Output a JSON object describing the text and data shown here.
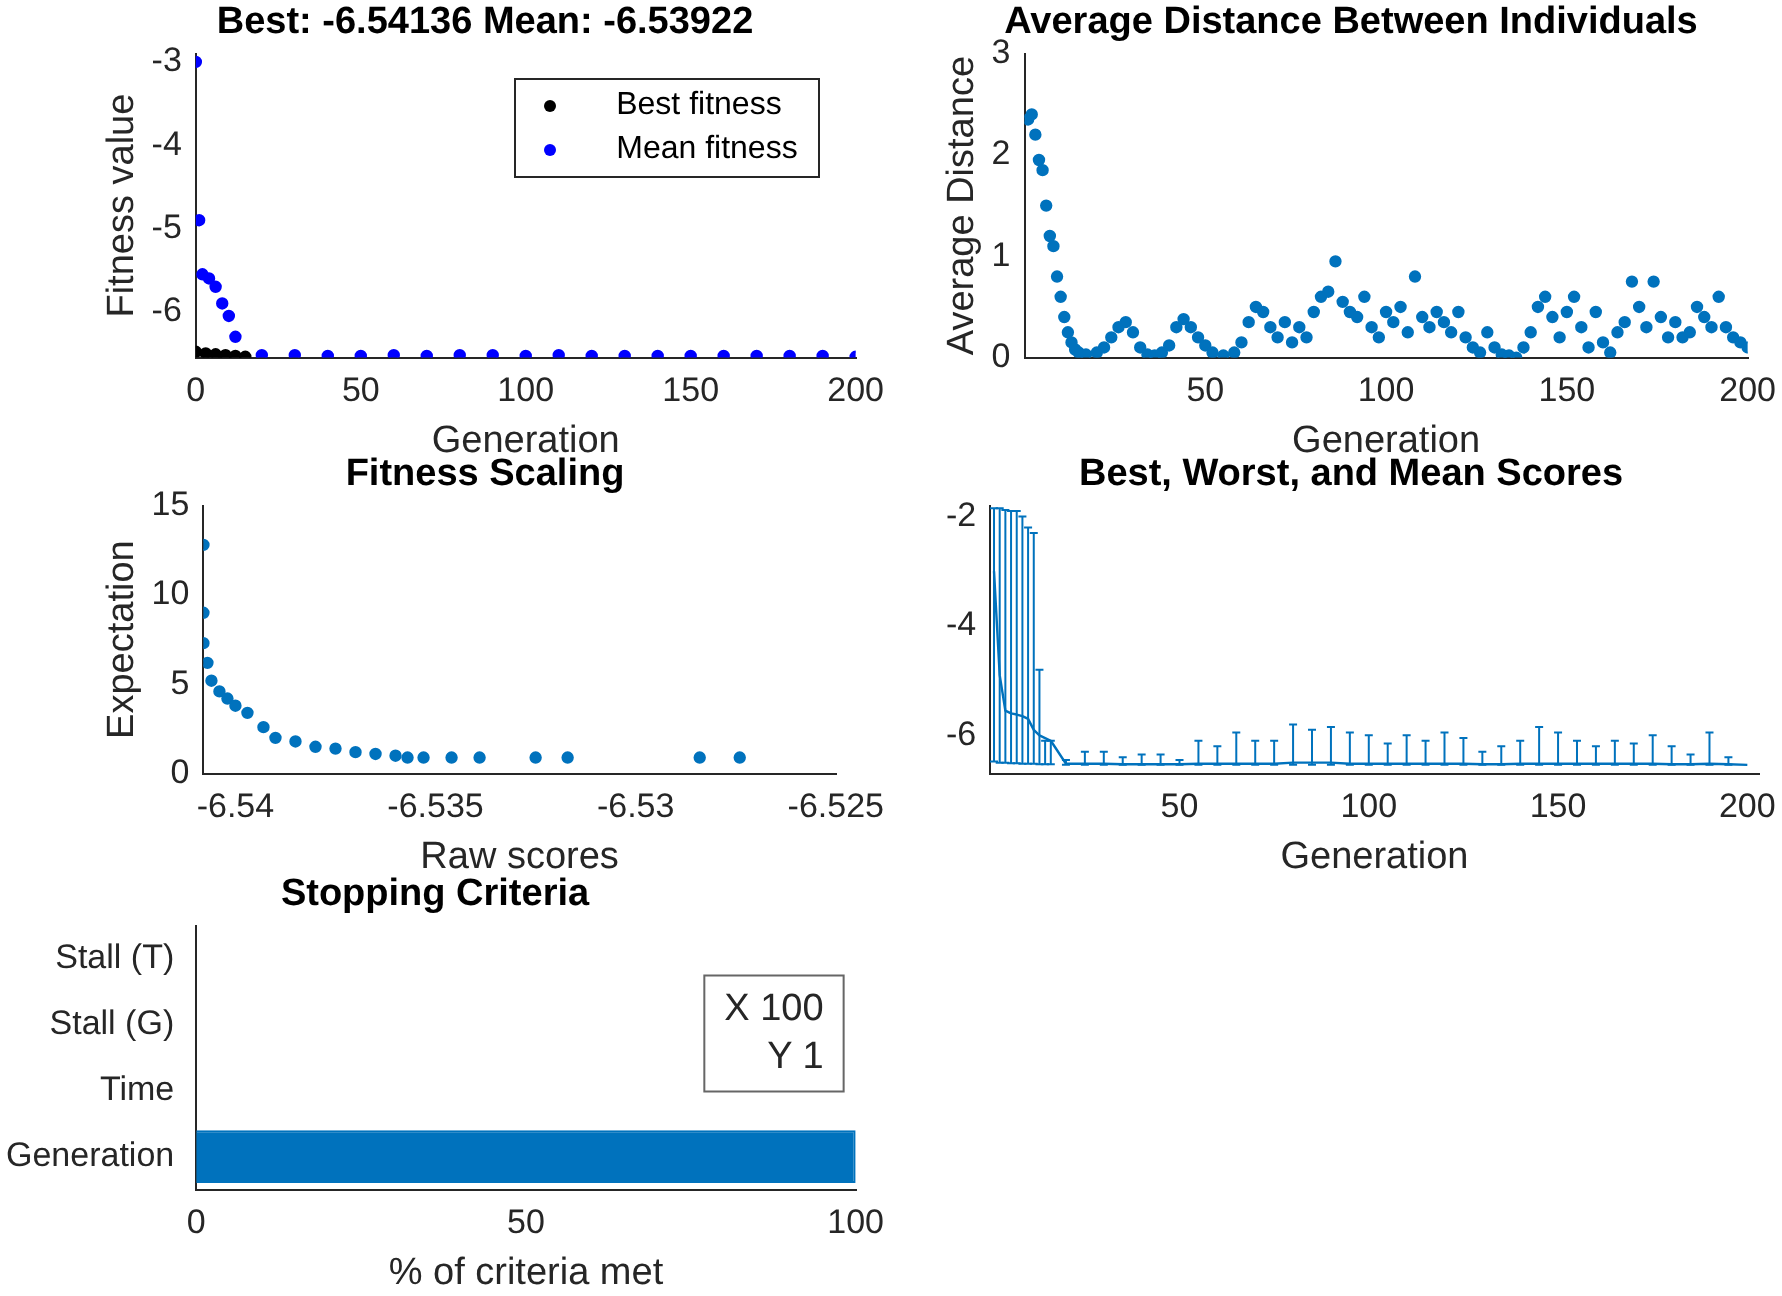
{
  "chart_data": [
    {
      "type": "scatter",
      "title": "Best: -6.54136 Mean: -6.53922",
      "xlabel": "Generation",
      "ylabel": "Fitness value",
      "xlim": [
        0,
        200
      ],
      "xticks": [
        0,
        50,
        100,
        150,
        200
      ],
      "ylim": [
        -6.55,
        -2.9
      ],
      "yticks": [
        -6,
        -5,
        -4,
        -3
      ],
      "legend": "top right",
      "marker": "circle",
      "series": [
        {
          "name": "Best fitness",
          "color": "#000000",
          "x": [
            0,
            3,
            6,
            9,
            12,
            15
          ],
          "values": [
            -6.48,
            -6.5,
            -6.51,
            -6.52,
            -6.53,
            -6.54
          ]
        },
        {
          "name": "Mean fitness",
          "color": "#0000ff",
          "x": [
            0,
            1,
            2,
            4,
            6,
            8,
            10,
            12,
            20,
            30,
            40,
            50,
            60,
            70,
            80,
            90,
            100,
            110,
            120,
            130,
            140,
            150,
            160,
            170,
            180,
            190,
            200
          ],
          "values": [
            -3.0,
            -4.9,
            -5.55,
            -5.6,
            -5.7,
            -5.9,
            -6.05,
            -6.3,
            -6.52,
            -6.52,
            -6.53,
            -6.53,
            -6.52,
            -6.53,
            -6.52,
            -6.52,
            -6.53,
            -6.52,
            -6.53,
            -6.53,
            -6.53,
            -6.53,
            -6.53,
            -6.53,
            -6.53,
            -6.53,
            -6.54
          ]
        }
      ]
    },
    {
      "type": "scatter",
      "title": "Average Distance Between Individuals",
      "xlabel": "Generation",
      "ylabel": "Average Distance",
      "xlim": [
        0,
        200
      ],
      "xticks": [
        50,
        100,
        150,
        200
      ],
      "ylim": [
        0,
        3
      ],
      "yticks": [
        0,
        1,
        2,
        3
      ],
      "marker": "circle",
      "series": [
        {
          "color": "#0072bd",
          "x": [
            1,
            2,
            3,
            4,
            5,
            6,
            7,
            8,
            9,
            10,
            11,
            12,
            13,
            14,
            15,
            17,
            20,
            22,
            24,
            26,
            28,
            30,
            32,
            34,
            36,
            38,
            40,
            42,
            44,
            46,
            48,
            50,
            52,
            55,
            58,
            60,
            62,
            64,
            66,
            68,
            70,
            72,
            74,
            76,
            78,
            80,
            82,
            84,
            86,
            88,
            90,
            92,
            94,
            96,
            98,
            100,
            102,
            104,
            106,
            108,
            110,
            112,
            114,
            116,
            118,
            120,
            122,
            124,
            126,
            128,
            130,
            132,
            134,
            136,
            138,
            140,
            142,
            144,
            146,
            148,
            150,
            152,
            154,
            156,
            158,
            160,
            162,
            164,
            166,
            168,
            170,
            172,
            174,
            176,
            178,
            180,
            182,
            184,
            186,
            188,
            190,
            192,
            194,
            196,
            198,
            200
          ],
          "values": [
            2.35,
            2.4,
            2.2,
            1.95,
            1.85,
            1.5,
            1.2,
            1.1,
            0.8,
            0.6,
            0.4,
            0.25,
            0.15,
            0.08,
            0.05,
            0.03,
            0.05,
            0.1,
            0.2,
            0.3,
            0.35,
            0.25,
            0.1,
            0.03,
            0.02,
            0.05,
            0.12,
            0.3,
            0.38,
            0.3,
            0.2,
            0.12,
            0.05,
            0.02,
            0.05,
            0.15,
            0.35,
            0.5,
            0.45,
            0.3,
            0.2,
            0.35,
            0.15,
            0.3,
            0.2,
            0.45,
            0.6,
            0.65,
            0.95,
            0.55,
            0.45,
            0.4,
            0.6,
            0.3,
            0.2,
            0.45,
            0.35,
            0.5,
            0.25,
            0.8,
            0.4,
            0.3,
            0.45,
            0.35,
            0.25,
            0.45,
            0.2,
            0.1,
            0.05,
            0.25,
            0.1,
            0.03,
            0.02,
            0.0,
            0.1,
            0.25,
            0.5,
            0.6,
            0.4,
            0.2,
            0.45,
            0.6,
            0.3,
            0.1,
            0.45,
            0.15,
            0.05,
            0.25,
            0.35,
            0.75,
            0.5,
            0.3,
            0.75,
            0.4,
            0.2,
            0.35,
            0.2,
            0.25,
            0.5,
            0.4,
            0.3,
            0.6,
            0.3,
            0.2,
            0.15,
            0.1
          ]
        }
      ]
    },
    {
      "type": "scatter",
      "title": "Fitness Scaling",
      "xlabel": "Raw scores",
      "ylabel": "Expectation",
      "xlim": [
        -6.5408,
        -6.525
      ],
      "xticks": [
        -6.54,
        -6.535,
        -6.53,
        -6.525
      ],
      "ylim": [
        0,
        15
      ],
      "yticks": [
        0,
        5,
        10,
        15
      ],
      "marker": "circle",
      "series": [
        {
          "color": "#0072bd",
          "x": [
            -6.5408,
            -6.5408,
            -6.5408,
            -6.5407,
            -6.5406,
            -6.5404,
            -6.5402,
            -6.54,
            -6.5397,
            -6.5393,
            -6.539,
            -6.5385,
            -6.538,
            -6.5375,
            -6.537,
            -6.5365,
            -6.536,
            -6.5357,
            -6.5353,
            -6.5346,
            -6.5339,
            -6.5325,
            -6.5317,
            -6.5284,
            -6.5274
          ],
          "values": [
            12.8,
            9.0,
            7.3,
            6.2,
            5.2,
            4.6,
            4.2,
            3.8,
            3.4,
            2.6,
            2.0,
            1.8,
            1.5,
            1.4,
            1.2,
            1.1,
            1.0,
            0.9,
            0.9,
            0.9,
            0.9,
            0.9,
            0.9,
            0.9,
            0.9
          ]
        }
      ]
    },
    {
      "type": "line",
      "title": "Best, Worst, and Mean Scores",
      "xlabel": "Generation",
      "xlim": [
        0,
        203
      ],
      "xticks": [
        50,
        100,
        150,
        200
      ],
      "ylim": [
        -6.7,
        -1.8
      ],
      "yticks": [
        -6,
        -4,
        -2
      ],
      "marker": "none",
      "series": [
        {
          "color": "#0072bd",
          "x": [
            1,
            2.5,
            4,
            5.5,
            7,
            8.5,
            10,
            11.5,
            13,
            14.5,
            16,
            20,
            25,
            30,
            35,
            40,
            45,
            50,
            55,
            60,
            65,
            70,
            75,
            80,
            85,
            90,
            95,
            100,
            105,
            110,
            115,
            120,
            125,
            130,
            135,
            140,
            145,
            150,
            155,
            160,
            165,
            170,
            175,
            180,
            185,
            190,
            195,
            200
          ],
          "values": [
            -3.0,
            -4.9,
            -5.55,
            -5.6,
            -5.62,
            -5.65,
            -5.7,
            -5.9,
            -6.0,
            -6.05,
            -6.1,
            -6.52,
            -6.52,
            -6.52,
            -6.53,
            -6.53,
            -6.53,
            -6.53,
            -6.52,
            -6.52,
            -6.52,
            -6.52,
            -6.52,
            -6.5,
            -6.5,
            -6.5,
            -6.52,
            -6.52,
            -6.52,
            -6.52,
            -6.52,
            -6.52,
            -6.52,
            -6.53,
            -6.53,
            -6.52,
            -6.52,
            -6.52,
            -6.52,
            -6.52,
            -6.52,
            -6.52,
            -6.52,
            -6.53,
            -6.53,
            -6.52,
            -6.53,
            -6.54
          ],
          "errors": [
            [
              -6.48,
              -1.85
            ],
            [
              -6.5,
              -1.85
            ],
            [
              -6.5,
              -1.88
            ],
            [
              -6.51,
              -1.9
            ],
            [
              -6.51,
              -1.9
            ],
            [
              -6.52,
              -2.0
            ],
            [
              -6.52,
              -2.2
            ],
            [
              -6.52,
              -2.3
            ],
            [
              -6.53,
              -4.8
            ],
            [
              -6.53,
              -6.1
            ],
            [
              -6.53,
              -6.1
            ],
            [
              -6.54,
              -6.45
            ],
            [
              -6.54,
              -6.3
            ],
            [
              -6.54,
              -6.3
            ],
            [
              -6.54,
              -6.4
            ],
            [
              -6.54,
              -6.35
            ],
            [
              -6.54,
              -6.35
            ],
            [
              -6.54,
              -6.45
            ],
            [
              -6.54,
              -6.1
            ],
            [
              -6.54,
              -6.2
            ],
            [
              -6.54,
              -5.95
            ],
            [
              -6.54,
              -6.1
            ],
            [
              -6.54,
              -6.1
            ],
            [
              -6.54,
              -5.8
            ],
            [
              -6.54,
              -5.9
            ],
            [
              -6.54,
              -5.85
            ],
            [
              -6.54,
              -5.95
            ],
            [
              -6.54,
              -6.0
            ],
            [
              -6.54,
              -6.15
            ],
            [
              -6.54,
              -6.0
            ],
            [
              -6.54,
              -6.1
            ],
            [
              -6.54,
              -5.95
            ],
            [
              -6.54,
              -6.05
            ],
            [
              -6.54,
              -6.3
            ],
            [
              -6.54,
              -6.2
            ],
            [
              -6.54,
              -6.1
            ],
            [
              -6.54,
              -5.85
            ],
            [
              -6.54,
              -5.95
            ],
            [
              -6.54,
              -6.1
            ],
            [
              -6.54,
              -6.2
            ],
            [
              -6.54,
              -6.1
            ],
            [
              -6.54,
              -6.15
            ],
            [
              -6.54,
              -6.0
            ],
            [
              -6.54,
              -6.2
            ],
            [
              -6.54,
              -6.35
            ],
            [
              -6.54,
              -5.95
            ],
            [
              -6.54,
              -6.4
            ],
            null
          ]
        }
      ]
    },
    {
      "type": "bar",
      "orientation": "horizontal",
      "title": "Stopping Criteria",
      "xlabel": "% of criteria met",
      "categories": [
        "Stall (T)",
        "Stall (G)",
        "Time",
        "Generation"
      ],
      "xlim": [
        0,
        100
      ],
      "xticks": [
        0,
        50,
        100
      ],
      "annotations": [
        "X 100",
        "Y 1"
      ],
      "series": [
        {
          "color": "#0072bd",
          "values": [
            0,
            0,
            0,
            100
          ]
        }
      ]
    }
  ]
}
